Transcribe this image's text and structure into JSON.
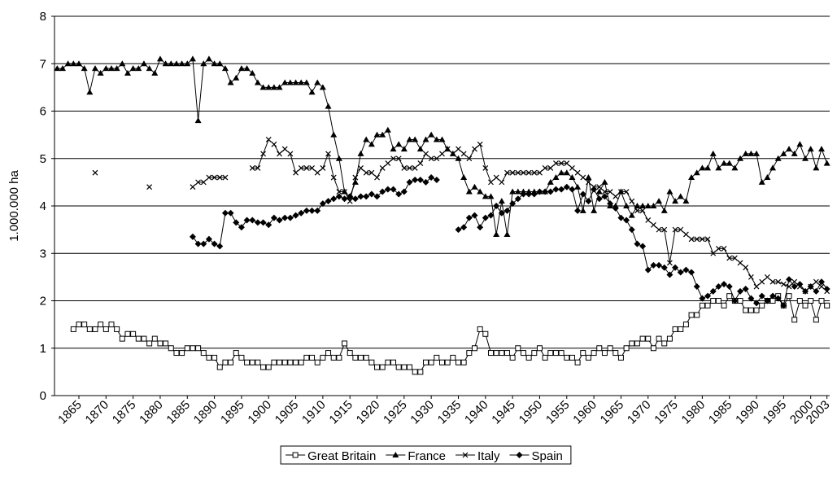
{
  "chart_data": {
    "type": "line",
    "ylabel": "1.000.000 ha",
    "x": [
      1861,
      1862,
      1863,
      1864,
      1865,
      1866,
      1867,
      1868,
      1869,
      1870,
      1871,
      1872,
      1873,
      1874,
      1875,
      1876,
      1877,
      1878,
      1879,
      1880,
      1881,
      1882,
      1883,
      1884,
      1885,
      1886,
      1887,
      1888,
      1889,
      1890,
      1891,
      1892,
      1893,
      1894,
      1895,
      1896,
      1897,
      1898,
      1899,
      1900,
      1901,
      1902,
      1903,
      1904,
      1905,
      1906,
      1907,
      1908,
      1909,
      1910,
      1911,
      1912,
      1913,
      1914,
      1915,
      1916,
      1917,
      1918,
      1919,
      1920,
      1921,
      1922,
      1923,
      1924,
      1925,
      1926,
      1927,
      1928,
      1929,
      1930,
      1931,
      1932,
      1933,
      1934,
      1935,
      1936,
      1937,
      1938,
      1939,
      1940,
      1941,
      1942,
      1943,
      1944,
      1945,
      1946,
      1947,
      1948,
      1949,
      1950,
      1951,
      1952,
      1953,
      1954,
      1955,
      1956,
      1957,
      1958,
      1959,
      1960,
      1961,
      1962,
      1963,
      1964,
      1965,
      1966,
      1967,
      1968,
      1969,
      1970,
      1971,
      1972,
      1973,
      1974,
      1975,
      1976,
      1977,
      1978,
      1979,
      1980,
      1981,
      1982,
      1983,
      1984,
      1985,
      1986,
      1987,
      1988,
      1989,
      1990,
      1991,
      1992,
      1993,
      1994,
      1995,
      1996,
      1997,
      1998,
      1999,
      2000,
      2001,
      2002,
      2003
    ],
    "series": [
      {
        "name": "Great Britain",
        "color": "#000000",
        "marker": "square",
        "values": [
          null,
          null,
          null,
          1.4,
          1.5,
          1.5,
          1.4,
          1.4,
          1.5,
          1.4,
          1.5,
          1.4,
          1.2,
          1.3,
          1.3,
          1.2,
          1.2,
          1.1,
          1.2,
          1.1,
          1.1,
          1.0,
          0.9,
          0.9,
          1.0,
          1.0,
          1.0,
          0.9,
          0.8,
          0.8,
          0.6,
          0.7,
          0.7,
          0.9,
          0.8,
          0.7,
          0.7,
          0.7,
          0.6,
          0.6,
          0.7,
          0.7,
          0.7,
          0.7,
          0.7,
          0.7,
          0.8,
          0.8,
          0.7,
          0.8,
          0.9,
          0.8,
          0.8,
          1.1,
          0.9,
          0.8,
          0.8,
          0.8,
          0.7,
          0.6,
          0.6,
          0.7,
          0.7,
          0.6,
          0.6,
          0.6,
          0.5,
          0.5,
          0.7,
          0.7,
          0.8,
          0.7,
          0.7,
          0.8,
          0.7,
          0.7,
          0.9,
          1.0,
          1.4,
          1.3,
          0.9,
          0.9,
          0.9,
          0.9,
          0.8,
          1.0,
          0.9,
          0.8,
          0.9,
          1.0,
          0.8,
          0.9,
          0.9,
          0.9,
          0.8,
          0.8,
          0.7,
          0.9,
          0.8,
          0.9,
          1.0,
          0.9,
          1.0,
          0.9,
          0.8,
          1.0,
          1.1,
          1.1,
          1.2,
          1.2,
          1.0,
          1.2,
          1.1,
          1.2,
          1.4,
          1.4,
          1.5,
          1.7,
          1.7,
          1.9,
          1.9,
          2.0,
          2.0,
          1.9,
          2.1,
          2.0,
          2.0,
          1.8,
          1.8,
          1.8,
          1.9,
          2.0,
          2.0,
          2.1,
          1.9,
          2.1,
          1.6,
          2.0,
          1.9,
          2.0,
          1.6,
          2.0,
          1.9
        ]
      },
      {
        "name": "France",
        "color": "#000000",
        "marker": "triangle",
        "values": [
          6.9,
          6.9,
          7.0,
          7.0,
          7.0,
          6.9,
          6.4,
          6.9,
          6.8,
          6.9,
          6.9,
          6.9,
          7.0,
          6.8,
          6.9,
          6.9,
          7.0,
          6.9,
          6.8,
          7.1,
          7.0,
          7.0,
          7.0,
          7.0,
          7.0,
          7.1,
          5.8,
          7.0,
          7.1,
          7.0,
          7.0,
          6.9,
          6.6,
          6.7,
          6.9,
          6.9,
          6.8,
          6.6,
          6.5,
          6.5,
          6.5,
          6.5,
          6.6,
          6.6,
          6.6,
          6.6,
          6.6,
          6.4,
          6.6,
          6.5,
          6.1,
          5.5,
          5.0,
          4.3,
          4.2,
          4.5,
          5.1,
          5.4,
          5.3,
          5.5,
          5.5,
          5.6,
          5.2,
          5.3,
          5.2,
          5.4,
          5.4,
          5.2,
          5.4,
          5.5,
          5.4,
          5.4,
          5.2,
          5.1,
          5.0,
          4.6,
          4.3,
          4.4,
          4.3,
          4.2,
          4.2,
          3.4,
          4.1,
          3.4,
          4.3,
          4.3,
          4.3,
          4.3,
          4.3,
          4.3,
          4.3,
          4.5,
          4.6,
          4.7,
          4.7,
          4.6,
          4.4,
          3.9,
          4.6,
          3.9,
          4.3,
          4.5,
          4.0,
          4.0,
          4.3,
          4.0,
          3.8,
          4.0,
          4.0,
          4.0,
          4.0,
          4.1,
          3.9,
          4.3,
          4.1,
          4.2,
          4.1,
          4.6,
          4.7,
          4.8,
          4.8,
          5.1,
          4.8,
          4.9,
          4.9,
          4.8,
          5.0,
          5.1,
          5.1,
          5.1,
          4.5,
          4.6,
          4.8,
          5.0,
          5.1,
          5.2,
          5.1,
          5.3,
          5.0,
          5.2,
          4.8,
          5.2,
          4.9
        ]
      },
      {
        "name": "Italy",
        "color": "#000000",
        "marker": "cross",
        "values": [
          null,
          null,
          null,
          null,
          null,
          null,
          null,
          4.7,
          null,
          null,
          null,
          null,
          null,
          null,
          null,
          null,
          null,
          4.4,
          null,
          null,
          null,
          null,
          null,
          null,
          null,
          4.4,
          4.5,
          4.5,
          4.6,
          4.6,
          4.6,
          4.6,
          null,
          null,
          null,
          null,
          4.8,
          4.8,
          5.1,
          5.4,
          5.3,
          5.1,
          5.2,
          5.1,
          4.7,
          4.8,
          4.8,
          4.8,
          4.7,
          4.8,
          5.1,
          4.6,
          4.3,
          4.3,
          4.1,
          4.6,
          4.8,
          4.7,
          4.7,
          4.6,
          4.8,
          4.9,
          5.0,
          5.0,
          4.8,
          4.8,
          4.8,
          4.9,
          5.1,
          5.0,
          5.0,
          5.1,
          5.2,
          5.1,
          5.2,
          5.1,
          5.0,
          5.2,
          5.3,
          4.8,
          4.5,
          4.6,
          4.5,
          4.7,
          4.7,
          4.7,
          4.7,
          4.7,
          4.7,
          4.7,
          4.8,
          4.8,
          4.9,
          4.9,
          4.9,
          4.8,
          4.7,
          4.6,
          4.5,
          4.4,
          4.4,
          4.3,
          4.3,
          4.2,
          4.3,
          4.3,
          4.1,
          3.9,
          3.9,
          3.7,
          3.6,
          3.5,
          3.5,
          2.8,
          3.5,
          3.5,
          3.4,
          3.3,
          3.3,
          3.3,
          3.3,
          3.0,
          3.1,
          3.1,
          2.9,
          2.9,
          2.8,
          2.7,
          2.5,
          2.3,
          2.4,
          2.5,
          2.4,
          2.4,
          2.35,
          2.3,
          2.4,
          2.3,
          2.2,
          2.3,
          2.4,
          2.3,
          2.2
        ]
      },
      {
        "name": "Spain",
        "color": "#000000",
        "marker": "diamond",
        "values": [
          null,
          null,
          null,
          null,
          null,
          null,
          null,
          null,
          null,
          null,
          null,
          null,
          null,
          null,
          null,
          null,
          null,
          null,
          null,
          null,
          null,
          null,
          null,
          null,
          null,
          3.35,
          3.2,
          3.2,
          3.3,
          3.2,
          3.15,
          3.85,
          3.85,
          3.65,
          3.55,
          3.7,
          3.7,
          3.65,
          3.65,
          3.6,
          3.75,
          3.7,
          3.75,
          3.75,
          3.8,
          3.85,
          3.9,
          3.9,
          3.9,
          4.05,
          4.1,
          4.15,
          4.2,
          4.15,
          4.2,
          4.15,
          4.2,
          4.2,
          4.25,
          4.2,
          4.3,
          4.35,
          4.35,
          4.25,
          4.3,
          4.5,
          4.55,
          4.55,
          4.5,
          4.6,
          4.55,
          null,
          null,
          null,
          3.5,
          3.55,
          3.75,
          3.8,
          3.55,
          3.75,
          3.8,
          4.0,
          3.85,
          3.9,
          4.05,
          4.15,
          4.25,
          4.25,
          4.25,
          4.3,
          4.3,
          4.3,
          4.35,
          4.35,
          4.4,
          4.35,
          3.9,
          4.25,
          4.1,
          4.35,
          4.15,
          4.2,
          4.05,
          3.95,
          3.75,
          3.7,
          3.5,
          3.2,
          3.15,
          2.65,
          2.75,
          2.75,
          2.7,
          2.55,
          2.7,
          2.6,
          2.65,
          2.6,
          2.3,
          2.05,
          2.1,
          2.2,
          2.3,
          2.35,
          2.3,
          2.0,
          2.2,
          2.25,
          2.05,
          1.95,
          2.1,
          2.0,
          2.1,
          2.05,
          1.9,
          2.45,
          2.3,
          2.35,
          2.2,
          2.3,
          2.2,
          2.4,
          2.25
        ]
      }
    ],
    "xlim": [
      1860.5,
      2003.5
    ],
    "xticks": [
      1865,
      1870,
      1875,
      1880,
      1885,
      1890,
      1895,
      1900,
      1905,
      1910,
      1915,
      1920,
      1925,
      1930,
      1935,
      1940,
      1945,
      1950,
      1955,
      1960,
      1965,
      1970,
      1975,
      1980,
      1985,
      1990,
      1995,
      2000,
      2003
    ],
    "ylim": [
      0,
      8
    ],
    "yticks": [
      0,
      1,
      2,
      3,
      4,
      5,
      6,
      7,
      8
    ],
    "grid": true,
    "legend": "bottom"
  }
}
